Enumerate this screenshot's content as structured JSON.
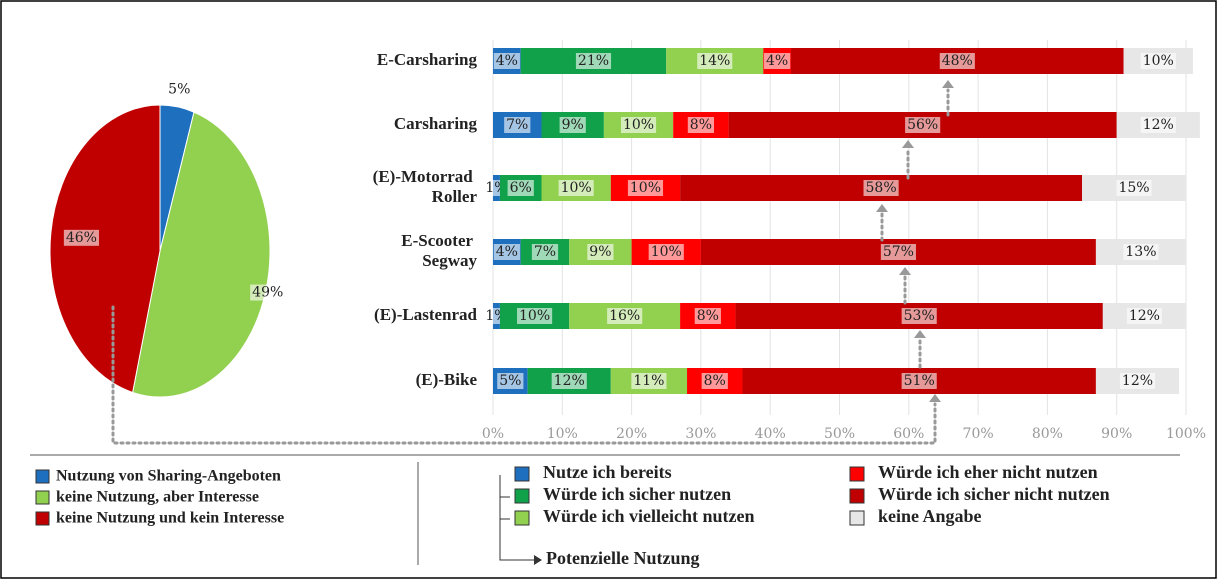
{
  "chart_data": [
    {
      "type": "pie",
      "categories": [
        "Nutzung von Sharing-Angeboten",
        "keine Nutzung, aber Interesse",
        "keine Nutzung und kein Interesse"
      ],
      "values": [
        5,
        49,
        46
      ],
      "value_labels": [
        "5%",
        "49%",
        "46%"
      ],
      "colors": [
        "#1f6fbf",
        "#92d050",
        "#c00000"
      ]
    },
    {
      "type": "stacked-bar",
      "orientation": "horizontal",
      "categories": [
        "E-Carsharing",
        "Carsharing",
        "(E)-Motorrad Roller",
        "E-Scooter Segway",
        "(E)-Lastenrad",
        "(E)-Bike"
      ],
      "series": [
        {
          "name": "Nutze ich bereits",
          "color": "#1f6fbf",
          "values": [
            4,
            7,
            1,
            4,
            1,
            5
          ],
          "value_labels": [
            "4%",
            "7%",
            "1%",
            "4%",
            "1%",
            "5%"
          ]
        },
        {
          "name": "Würde ich sicher nutzen",
          "color": "#12a14b",
          "values": [
            21,
            9,
            6,
            7,
            10,
            12
          ],
          "value_labels": [
            "21%",
            "9%",
            "6%",
            "7%",
            "10%",
            "12%"
          ]
        },
        {
          "name": "Würde ich vielleicht nutzen",
          "color": "#92d050",
          "values": [
            14,
            10,
            10,
            9,
            16,
            11
          ],
          "value_labels": [
            "14%",
            "10%",
            "10%",
            "9%",
            "16%",
            "11%"
          ]
        },
        {
          "name": "Würde ich eher nicht nutzen",
          "color": "#ff0000",
          "values": [
            4,
            8,
            10,
            10,
            8,
            8
          ],
          "value_labels": [
            "4%",
            "8%",
            "10%",
            "10%",
            "8%",
            "8%"
          ]
        },
        {
          "name": "Würde ich sicher nicht nutzen",
          "color": "#c00000",
          "values": [
            48,
            56,
            58,
            57,
            53,
            51
          ],
          "value_labels": [
            "48%",
            "56%",
            "58%",
            "57%",
            "53%",
            "51%"
          ]
        },
        {
          "name": "keine Angabe",
          "color": "#e7e7e7",
          "values": [
            10,
            12,
            15,
            13,
            12,
            12
          ],
          "value_labels": [
            "10%",
            "12%",
            "15%",
            "13%",
            "12%",
            "12%"
          ]
        }
      ],
      "xlim": [
        0,
        100
      ],
      "xticks": [
        {
          "value": 0,
          "label": "0%"
        },
        {
          "value": 10,
          "label": "10%"
        },
        {
          "value": 20,
          "label": "20%"
        },
        {
          "value": 30,
          "label": "30%"
        },
        {
          "value": 40,
          "label": "40%"
        },
        {
          "value": 50,
          "label": "50%"
        },
        {
          "value": 60,
          "label": "60%"
        },
        {
          "value": 70,
          "label": "70%"
        },
        {
          "value": 80,
          "label": "80%"
        },
        {
          "value": 90,
          "label": "90%"
        },
        {
          "value": 100,
          "label": "100%"
        }
      ],
      "grid": true,
      "annotation": "Potenzielle Nutzung"
    }
  ]
}
